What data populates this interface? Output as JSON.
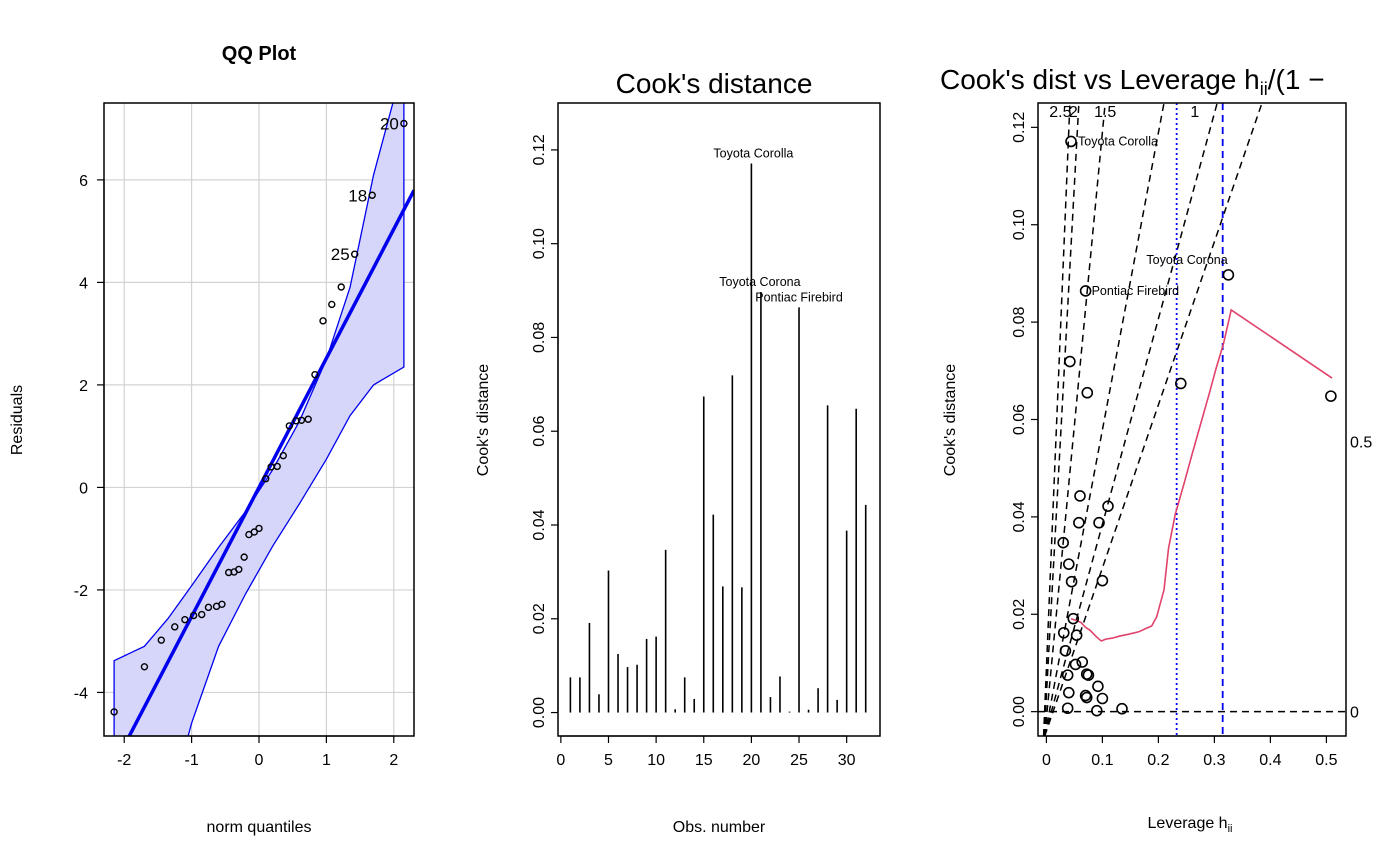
{
  "chart_data": [
    {
      "type": "scatter",
      "title": "QQ Plot",
      "xlabel": "norm quantiles",
      "ylabel": "Residuals",
      "xlim": [
        -2.3,
        2.3
      ],
      "ylim": [
        -4.85,
        7.5
      ],
      "xticks": [
        "-2",
        "-1",
        "0",
        "1",
        "2"
      ],
      "xtick_values": [
        -2,
        -1,
        0,
        1,
        2
      ],
      "yticks": [
        "-4",
        "-2",
        "0",
        "2",
        "4",
        "6"
      ],
      "ytick_values": [
        -4,
        -2,
        0,
        2,
        4,
        6
      ],
      "grid": true,
      "reference_line": {
        "intercept": 0,
        "slope": 2.52
      },
      "envelope": {
        "upper": [
          [
            -2.15,
            -3.38
          ],
          [
            -1.7,
            -3.1
          ],
          [
            -1.35,
            -2.56
          ],
          [
            -1.0,
            -1.92
          ],
          [
            -0.6,
            -1.17
          ],
          [
            -0.2,
            -0.47
          ],
          [
            0.2,
            0.34
          ],
          [
            0.6,
            1.29
          ],
          [
            1.0,
            2.5
          ],
          [
            1.35,
            3.9
          ],
          [
            1.7,
            6.1
          ],
          [
            2.15,
            8.3
          ]
        ],
        "lower": [
          [
            -2.15,
            -5.3
          ],
          [
            -1.7,
            -7.0
          ],
          [
            -1.35,
            -6.3
          ],
          [
            -1.0,
            -4.6
          ],
          [
            -0.6,
            -3.1
          ],
          [
            -0.2,
            -2.08
          ],
          [
            0.2,
            -1.15
          ],
          [
            0.6,
            -0.32
          ],
          [
            1.0,
            0.55
          ],
          [
            1.35,
            1.4
          ],
          [
            1.7,
            2.0
          ],
          [
            2.15,
            2.35
          ]
        ],
        "fill": "#d6d6fa",
        "stroke": "#0000ee"
      },
      "points": {
        "x": [
          -2.15,
          -1.7,
          -1.45,
          -1.25,
          -1.1,
          -0.97,
          -0.85,
          -0.75,
          -0.63,
          -0.55,
          -0.45,
          -0.37,
          -0.3,
          -0.22,
          -0.15,
          -0.07,
          0.0,
          0.1,
          0.18,
          0.27,
          0.36,
          0.45,
          0.55,
          0.63,
          0.73,
          0.83,
          0.95,
          1.08,
          1.22,
          1.42,
          1.68,
          2.15
        ],
        "y": [
          -4.38,
          -3.5,
          -2.98,
          -2.72,
          -2.58,
          -2.5,
          -2.48,
          -2.34,
          -2.32,
          -2.28,
          -1.66,
          -1.65,
          -1.6,
          -1.36,
          -0.92,
          -0.87,
          -0.8,
          0.17,
          0.4,
          0.41,
          0.62,
          1.2,
          1.3,
          1.31,
          1.33,
          2.2,
          3.25,
          3.57,
          3.91,
          4.55,
          5.7,
          7.1
        ]
      },
      "labels": [
        {
          "text": "20",
          "x": 2.15,
          "y": 7.1
        },
        {
          "text": "18",
          "x": 1.68,
          "y": 5.7
        },
        {
          "text": "25",
          "x": 1.42,
          "y": 4.55
        }
      ]
    },
    {
      "type": "bar",
      "title": "Cook's distance",
      "xlabel": "Obs. number",
      "ylabel": "Cook's distance",
      "xlim": [
        -0.3,
        33.5
      ],
      "ylim": [
        -0.005,
        0.13
      ],
      "xticks": [
        "0",
        "5",
        "10",
        "15",
        "20",
        "25",
        "30"
      ],
      "xtick_values": [
        0,
        5,
        10,
        15,
        20,
        25,
        30
      ],
      "yticks": [
        "0.00",
        "0.02",
        "0.04",
        "0.06",
        "0.08",
        "0.10",
        "0.12"
      ],
      "ytick_values": [
        0,
        0.02,
        0.04,
        0.06,
        0.08,
        0.1,
        0.12
      ],
      "x": [
        1,
        2,
        3,
        4,
        5,
        6,
        7,
        8,
        9,
        10,
        11,
        12,
        13,
        14,
        15,
        16,
        17,
        18,
        19,
        20,
        21,
        22,
        23,
        24,
        25,
        26,
        27,
        28,
        29,
        30,
        31,
        32
      ],
      "values": [
        0.0075,
        0.0075,
        0.0191,
        0.0039,
        0.0303,
        0.0125,
        0.0097,
        0.0102,
        0.0157,
        0.0162,
        0.0347,
        0.0007,
        0.0075,
        0.0029,
        0.0674,
        0.0422,
        0.0269,
        0.0719,
        0.0267,
        0.1171,
        0.0897,
        0.0033,
        0.0077,
        0.0002,
        0.0864,
        0.0006,
        0.0052,
        0.0655,
        0.0027,
        0.0388,
        0.0648,
        0.0443
      ],
      "labels": [
        {
          "text": "Toyota Corolla",
          "x": 20,
          "y": 0.1171
        },
        {
          "text": "Toyota Corona",
          "x": 21,
          "y": 0.0897
        },
        {
          "text": "Pontiac Firebird",
          "x": 25,
          "y": 0.0864
        }
      ]
    },
    {
      "type": "scatter",
      "title_main": "Cook's dist vs Leverage  h",
      "title_sub": "ii",
      "title_tail": "/(1 −",
      "xlabel_main": "Leverage  h",
      "xlabel_sub": "ii",
      "ylabel": "Cook's distance",
      "xlim": [
        -0.015,
        0.535
      ],
      "ylim": [
        -0.005,
        0.125
      ],
      "xticks": [
        "0",
        "0.1",
        "0.2",
        "0.3",
        "0.4",
        "0.5"
      ],
      "xtick_values": [
        0,
        0.1,
        0.2,
        0.3,
        0.4,
        0.5
      ],
      "yticks": [
        "0.00",
        "0.02",
        "0.04",
        "0.06",
        "0.08",
        "0.10",
        "0.12"
      ],
      "ytick_values": [
        0,
        0.02,
        0.04,
        0.06,
        0.08,
        0.1,
        0.12
      ],
      "contour_labels": [
        "2.5",
        "2",
        "1.5",
        "1"
      ],
      "contour_label_x": [
        0.025,
        0.048,
        0.105,
        0.265
      ],
      "contour_lines": [
        {
          "slope": 4.8,
          "x_top": 0.042,
          "x_bottom": -0.005
        },
        {
          "slope": 3.0,
          "x_top": 0.058,
          "x_bottom": -0.004
        },
        {
          "slope": 1.5,
          "x_top": 0.105,
          "x_bottom": -0.003
        },
        {
          "slope": 0.65,
          "x_top": 0.21,
          "x_bottom": -0.003
        },
        {
          "slope": 0.43,
          "x_top": 0.305,
          "x_bottom": -0.003
        },
        {
          "slope": 0.32,
          "x_top": 0.385,
          "x_bottom": -0.003
        }
      ],
      "right_labels": [
        {
          "text": "0.5",
          "y": 0.0555
        },
        {
          "text": "0",
          "y": 0.0
        }
      ],
      "vlines": [
        {
          "x": 0.2326,
          "color": "#0000ff",
          "style": "dotted"
        },
        {
          "x": 0.3148,
          "color": "#0000ee",
          "style": "dashed"
        }
      ],
      "hline": 0,
      "smoother": {
        "color": "#e0426a",
        "x": [
          0.044,
          0.054,
          0.062,
          0.07,
          0.078,
          0.09,
          0.098,
          0.106,
          0.118,
          0.13,
          0.147,
          0.165,
          0.176,
          0.188,
          0.197,
          0.21,
          0.218,
          0.23,
          0.245,
          0.26,
          0.275,
          0.29,
          0.303,
          0.316,
          0.33,
          0.51
        ],
        "y": [
          0.0191,
          0.0187,
          0.0183,
          0.0173,
          0.0167,
          0.0153,
          0.0145,
          0.0149,
          0.0151,
          0.0155,
          0.0159,
          0.0164,
          0.017,
          0.0176,
          0.0195,
          0.025,
          0.0335,
          0.0405,
          0.0465,
          0.0528,
          0.0589,
          0.065,
          0.0705,
          0.0755,
          0.0825,
          0.0685
        ]
      },
      "points": {
        "x": [
          0.044,
          0.042,
          0.03,
          0.04,
          0.031,
          0.034,
          0.045,
          0.048,
          0.054,
          0.04,
          0.038,
          0.038,
          0.06,
          0.07,
          0.073,
          0.064,
          0.075,
          0.072,
          0.072,
          0.07,
          0.058,
          0.052,
          0.1,
          0.09,
          0.092,
          0.094,
          0.11,
          0.1,
          0.24,
          0.135,
          0.325,
          0.508
        ],
        "y": [
          0.1171,
          0.0719,
          0.0347,
          0.0303,
          0.0162,
          0.0125,
          0.0267,
          0.0191,
          0.0157,
          0.0039,
          0.0007,
          0.0075,
          0.0443,
          0.0864,
          0.0655,
          0.0102,
          0.0075,
          0.0077,
          0.0029,
          0.0033,
          0.0388,
          0.0097,
          0.0269,
          0.0002,
          0.0052,
          0.0388,
          0.0422,
          0.0027,
          0.0674,
          0.0006,
          0.0897,
          0.0648
        ]
      },
      "labels": [
        {
          "text": "Toyota Corolla",
          "x": 0.044,
          "y": 0.1171
        },
        {
          "text": "Toyota Corona",
          "x": 0.325,
          "y": 0.0897
        },
        {
          "text": "Pontiac Firebird",
          "x": 0.07,
          "y": 0.0864
        }
      ]
    }
  ]
}
